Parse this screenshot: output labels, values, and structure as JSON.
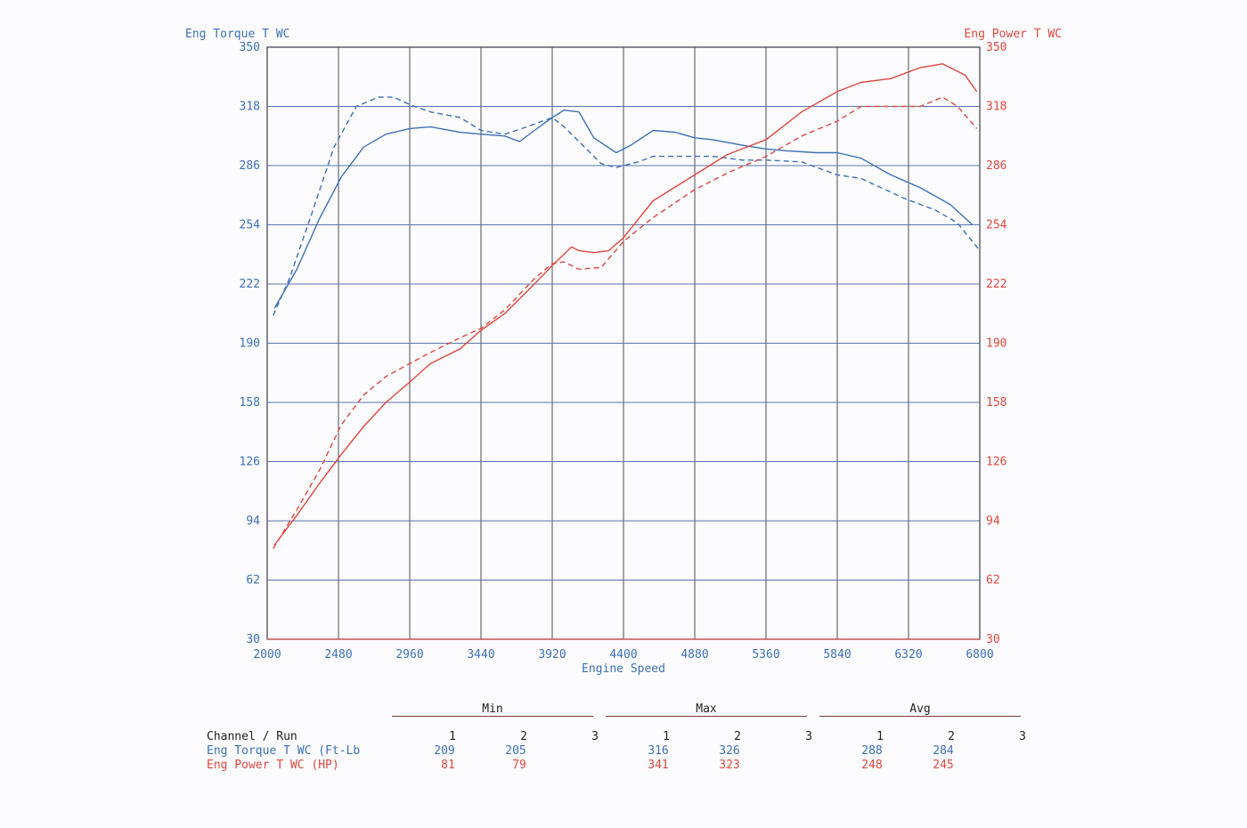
{
  "chart_data": {
    "type": "line",
    "x_axis": {
      "label": "Engine Speed",
      "min": 2000,
      "max": 6800,
      "ticks": [
        2000,
        2480,
        2960,
        3440,
        3920,
        4400,
        4880,
        5360,
        5840,
        6320,
        6800
      ]
    },
    "y_left": {
      "label": "Eng Torque T WC",
      "min": 30,
      "max": 350,
      "ticks": [
        30,
        62,
        94,
        126,
        158,
        190,
        222,
        254,
        286,
        318,
        350
      ],
      "color": "#3d6fb6"
    },
    "y_right": {
      "label": "Eng Power T WC",
      "min": 30,
      "max": 350,
      "ticks": [
        30,
        62,
        94,
        126,
        158,
        190,
        222,
        254,
        286,
        318,
        350
      ],
      "color": "#e0473f"
    },
    "grid": true,
    "series": [
      {
        "axis": "left",
        "color": "#3d6fb6",
        "style": "solid",
        "x": [
          2050,
          2200,
          2350,
          2500,
          2650,
          2800,
          2960,
          3100,
          3300,
          3440,
          3600,
          3700,
          3800,
          3920,
          4000,
          4100,
          4200,
          4350,
          4450,
          4600,
          4750,
          4880,
          5000,
          5200,
          5360,
          5500,
          5700,
          5840,
          6000,
          6200,
          6400,
          6600,
          6750
        ],
        "y": [
          209,
          230,
          257,
          280,
          296,
          303,
          306,
          307,
          304,
          303,
          302,
          299,
          305,
          312,
          316,
          315,
          301,
          293,
          297,
          305,
          304,
          301,
          300,
          297,
          295,
          294,
          293,
          293,
          290,
          281,
          274,
          265,
          254
        ]
      },
      {
        "axis": "left",
        "color": "#3d6fb6",
        "style": "dashed",
        "x": [
          2040,
          2150,
          2300,
          2450,
          2600,
          2750,
          2850,
          2960,
          3100,
          3300,
          3440,
          3600,
          3750,
          3920,
          4000,
          4100,
          4250,
          4350,
          4500,
          4600,
          4800,
          5000,
          5200,
          5360,
          5600,
          5840,
          6000,
          6300,
          6500,
          6650,
          6800
        ],
        "y": [
          205,
          225,
          260,
          296,
          318,
          323,
          323,
          319,
          315,
          312,
          305,
          303,
          307,
          312,
          307,
          299,
          287,
          285,
          288,
          291,
          291,
          291,
          289,
          289,
          288,
          281,
          279,
          268,
          262,
          255,
          240
        ]
      },
      {
        "axis": "right",
        "color": "#e0473f",
        "style": "solid",
        "x": [
          2050,
          2200,
          2350,
          2500,
          2650,
          2800,
          2960,
          3100,
          3300,
          3440,
          3600,
          3800,
          3920,
          4050,
          4100,
          4200,
          4300,
          4400,
          4600,
          4880,
          5100,
          5360,
          5600,
          5840,
          6000,
          6200,
          6400,
          6550,
          6700,
          6780
        ],
        "y": [
          81,
          97,
          114,
          130,
          145,
          158,
          169,
          179,
          187,
          197,
          206,
          222,
          232,
          242,
          240,
          239,
          240,
          247,
          267,
          281,
          292,
          300,
          315,
          326,
          331,
          333,
          339,
          341,
          335,
          326
        ]
      },
      {
        "axis": "right",
        "color": "#e0473f",
        "style": "dashed",
        "x": [
          2040,
          2200,
          2350,
          2500,
          2650,
          2800,
          2960,
          3100,
          3300,
          3440,
          3600,
          3800,
          3920,
          4000,
          4100,
          4250,
          4400,
          4600,
          4880,
          5100,
          5360,
          5600,
          5840,
          6000,
          6200,
          6400,
          6550,
          6650,
          6780
        ],
        "y": [
          79,
          100,
          121,
          146,
          162,
          172,
          179,
          185,
          193,
          198,
          208,
          225,
          233,
          234,
          230,
          231,
          245,
          258,
          273,
          282,
          291,
          302,
          310,
          318,
          318,
          318,
          323,
          318,
          306
        ]
      }
    ],
    "stats_table": {
      "header_label": "Channel / Run",
      "groups": [
        "Min",
        "Max",
        "Avg"
      ],
      "runs": [
        "1",
        "2",
        "3"
      ],
      "rows": [
        {
          "label": "Eng Torque T WC (Ft-Lb",
          "color": "#3d6fb6",
          "min": [
            "209",
            "205",
            ""
          ],
          "max": [
            "316",
            "326",
            ""
          ],
          "avg": [
            "288",
            "284",
            ""
          ]
        },
        {
          "label": "Eng Power T WC (HP)",
          "color": "#e0473f",
          "min": [
            "81",
            "79",
            ""
          ],
          "max": [
            "341",
            "323",
            ""
          ],
          "avg": [
            "248",
            "245",
            ""
          ]
        }
      ]
    }
  }
}
